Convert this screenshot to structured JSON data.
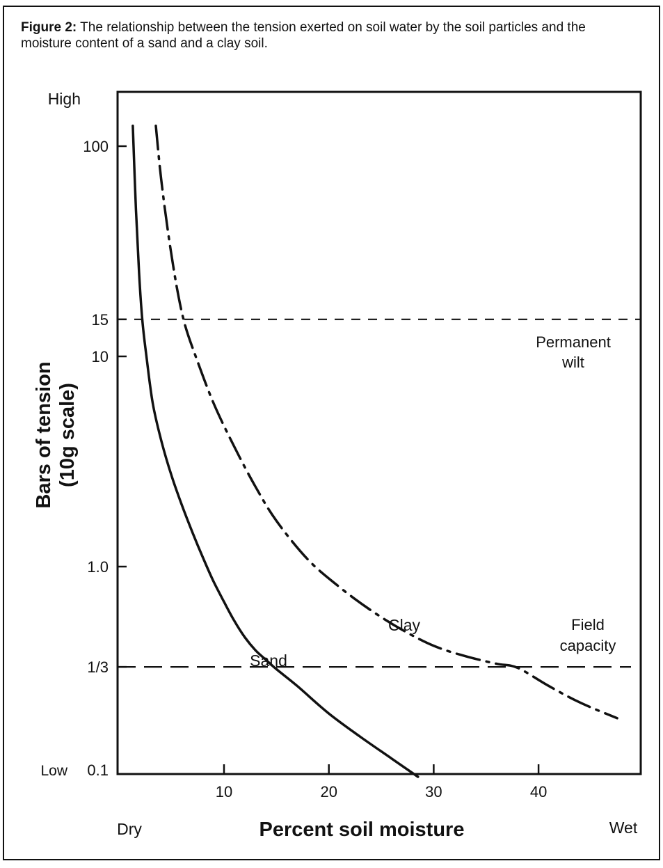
{
  "caption": {
    "figure_label": "Figure 2:",
    "text": "The relationship between the tension exerted on soil water by the soil particles and the moisture content of a sand and a clay soil."
  },
  "chart_data": {
    "type": "line",
    "xlabel": "Percent soil moisture",
    "ylabel_line1": "Bars of tension",
    "ylabel_line2": "(10g scale)",
    "x_end_labels": {
      "left": "Dry",
      "right": "Wet"
    },
    "y_end_labels": {
      "top": "High",
      "bottom": "Low"
    },
    "y_scale": "log",
    "xlim": [
      0,
      50
    ],
    "ylim": [
      0.1,
      220
    ],
    "x_ticks": [
      {
        "value": 10,
        "label": "10"
      },
      {
        "value": 20,
        "label": "20"
      },
      {
        "value": 30,
        "label": "30"
      },
      {
        "value": 40,
        "label": "40"
      }
    ],
    "y_ticks": [
      {
        "value": 100,
        "label": "100"
      },
      {
        "value": 15,
        "label": "15"
      },
      {
        "value": 10,
        "label": "10"
      },
      {
        "value": 1.0,
        "label": "1.0"
      },
      {
        "value": 0.3333,
        "label": "1/3"
      },
      {
        "value": 0.1,
        "label": "0.1"
      }
    ],
    "reference_lines": [
      {
        "y": 15,
        "label_line1": "Permanent",
        "label_line2": "wilt"
      },
      {
        "y": 0.3333,
        "label_line1": "Field",
        "label_line2": "capacity"
      }
    ],
    "series": [
      {
        "name": "Sand",
        "style": "solid",
        "points": [
          [
            1.3,
            125
          ],
          [
            1.6,
            50
          ],
          [
            1.9,
            25
          ],
          [
            2.2,
            15
          ],
          [
            2.6,
            10
          ],
          [
            3.2,
            6
          ],
          [
            4,
            4
          ],
          [
            5,
            2.7
          ],
          [
            6,
            1.95
          ],
          [
            7,
            1.45
          ],
          [
            8,
            1.1
          ],
          [
            9,
            0.85
          ],
          [
            10,
            0.68
          ],
          [
            11,
            0.55
          ],
          [
            12,
            0.46
          ],
          [
            13,
            0.4
          ],
          [
            14,
            0.36
          ],
          [
            15,
            0.325
          ],
          [
            17,
            0.27
          ],
          [
            20,
            0.2
          ],
          [
            23,
            0.155
          ],
          [
            26,
            0.122
          ],
          [
            28.5,
            0.1
          ]
        ]
      },
      {
        "name": "Clay",
        "style": "dash-dot",
        "points": [
          [
            3.5,
            125
          ],
          [
            4,
            70
          ],
          [
            4.8,
            35
          ],
          [
            5.6,
            20
          ],
          [
            6.3,
            14
          ],
          [
            7.3,
            10
          ],
          [
            9,
            6
          ],
          [
            11,
            3.7
          ],
          [
            13,
            2.4
          ],
          [
            15,
            1.65
          ],
          [
            18,
            1.08
          ],
          [
            21,
            0.8
          ],
          [
            24,
            0.62
          ],
          [
            27,
            0.5
          ],
          [
            30,
            0.42
          ],
          [
            33,
            0.375
          ],
          [
            36,
            0.345
          ],
          [
            38,
            0.33
          ],
          [
            41,
            0.27
          ],
          [
            44,
            0.225
          ],
          [
            47.5,
            0.19
          ]
        ]
      }
    ]
  }
}
